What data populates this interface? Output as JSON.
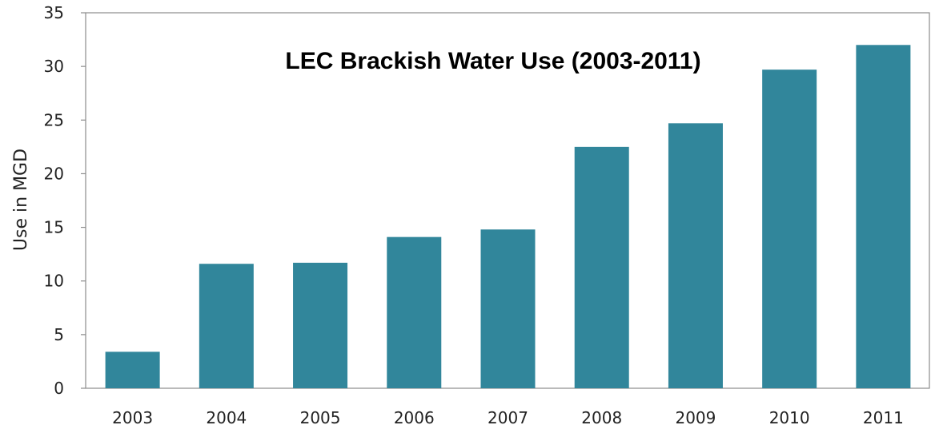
{
  "chart_data": {
    "type": "bar",
    "title": "LEC Brackish Water Use (2003-2011)",
    "xlabel": "",
    "ylabel": "Use in MGD",
    "categories": [
      "2003",
      "2004",
      "2005",
      "2006",
      "2007",
      "2008",
      "2009",
      "2010",
      "2011"
    ],
    "values": [
      3.4,
      11.6,
      11.7,
      14.1,
      14.8,
      22.5,
      24.7,
      29.7,
      32.0
    ],
    "ylim": [
      0,
      35
    ],
    "yticks": [
      0,
      5,
      10,
      15,
      20,
      25,
      30,
      35
    ],
    "grid": false,
    "legend": "none",
    "bar_color": "#31869B"
  }
}
